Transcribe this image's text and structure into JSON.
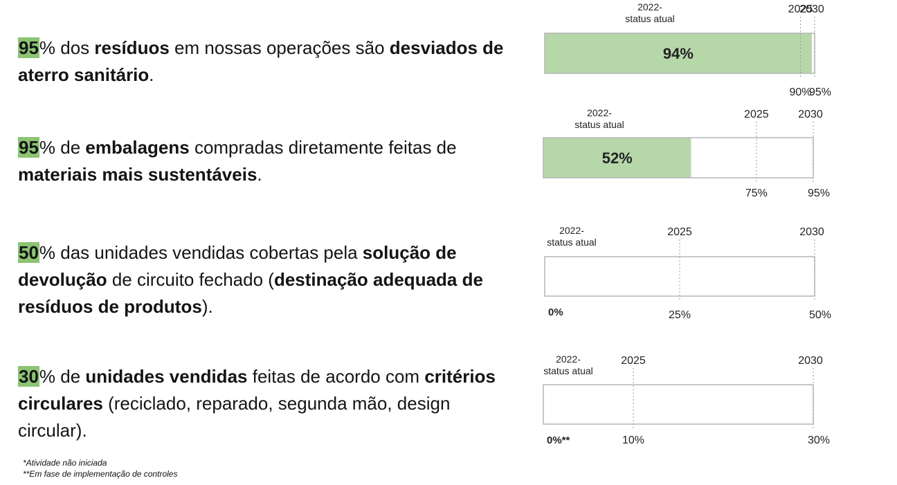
{
  "goals": [
    {
      "parts": [
        {
          "text": "95",
          "style": "hl"
        },
        {
          "text": "% dos ",
          "style": "normal"
        },
        {
          "text": "resíduos",
          "style": "bold"
        },
        {
          "text": " em nossas operações são ",
          "style": "normal"
        },
        {
          "text": "desviados de aterro sanitário",
          "style": "bold"
        },
        {
          "text": ".",
          "style": "normal"
        }
      ]
    },
    {
      "parts": [
        {
          "text": "95",
          "style": "hl"
        },
        {
          "text": "% de ",
          "style": "normal"
        },
        {
          "text": "embalagens",
          "style": "bold"
        },
        {
          "text": " compradas diretamente feitas de ",
          "style": "normal"
        },
        {
          "text": "materiais mais sustentáveis",
          "style": "bold"
        },
        {
          "text": ".",
          "style": "normal"
        }
      ]
    },
    {
      "parts": [
        {
          "text": "50",
          "style": "hl"
        },
        {
          "text": "% das unidades vendidas cobertas pela ",
          "style": "normal"
        },
        {
          "text": "solução de devolução",
          "style": "bold"
        },
        {
          "text": " de circuito fechado (",
          "style": "normal"
        },
        {
          "text": "destinação adequada de resíduos de produtos",
          "style": "bold"
        },
        {
          "text": ").",
          "style": "normal"
        }
      ]
    },
    {
      "parts": [
        {
          "text": "30",
          "style": "hl"
        },
        {
          "text": "% de ",
          "style": "normal"
        },
        {
          "text": "unidades vendidas",
          "style": "bold"
        },
        {
          "text": " feitas de acordo com ",
          "style": "normal"
        },
        {
          "text": "critérios circulares",
          "style": "bold"
        },
        {
          "text": " (reciclado, reparado, segunda mão, design circular).",
          "style": "normal"
        }
      ]
    }
  ],
  "footnotes": [
    "*Atividade não iniciada",
    "**Em fase de implementação de controles"
  ],
  "colors": {
    "bar_fill": "#b6d7a8",
    "highlight": "#8cc474",
    "bar_border": "#b5b5b5",
    "marker_line": "#9a9a9a"
  },
  "chart_data": [
    {
      "type": "bar",
      "orientation": "horizontal",
      "current_label": "2022-\nstatus atual",
      "value": 94,
      "value_label": "94%",
      "value_bold": true,
      "target_2025": 90,
      "target_2025_label": "90%",
      "year_2025": "2025",
      "target_2030": 95,
      "target_2030_label": "95%",
      "year_2030": "2030",
      "xlim": [
        0,
        95
      ]
    },
    {
      "type": "bar",
      "orientation": "horizontal",
      "current_label": "2022-\nstatus atual",
      "value": 52,
      "value_label": "52%",
      "value_bold": true,
      "target_2025": 75,
      "target_2025_label": "75%",
      "year_2025": "2025",
      "target_2030": 95,
      "target_2030_label": "95%",
      "year_2030": "2030",
      "xlim": [
        0,
        95
      ]
    },
    {
      "type": "bar",
      "orientation": "horizontal",
      "current_label": "2022-\nstatus atual",
      "value": 0,
      "value_label": "0%",
      "value_bold": true,
      "target_2025": 25,
      "target_2025_label": "25%",
      "year_2025": "2025",
      "target_2030": 50,
      "target_2030_label": "50%",
      "year_2030": "2030",
      "xlim": [
        0,
        50
      ]
    },
    {
      "type": "bar",
      "orientation": "horizontal",
      "current_label": "2022-\nstatus atual",
      "value": 0,
      "value_label": "0%**",
      "value_bold": true,
      "target_2025": 10,
      "target_2025_label": "10%",
      "year_2025": "2025",
      "target_2030": 30,
      "target_2030_label": "30%",
      "year_2030": "2030",
      "xlim": [
        0,
        30
      ]
    }
  ]
}
